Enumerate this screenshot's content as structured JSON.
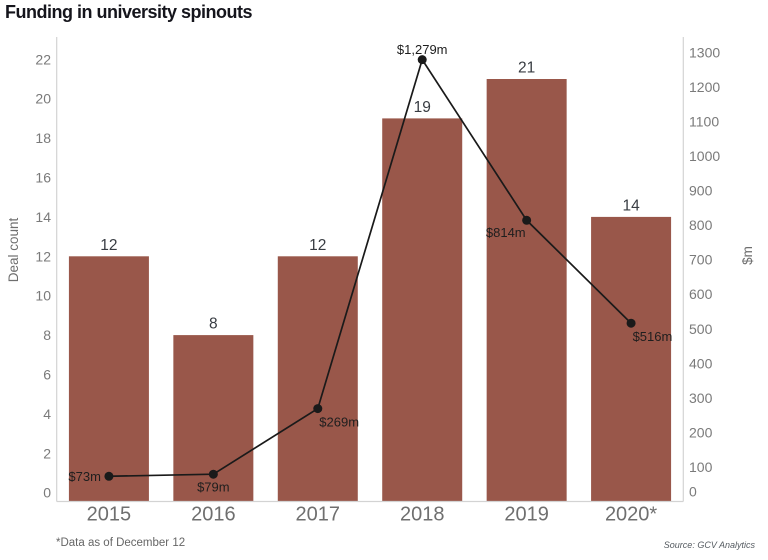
{
  "title": "Funding in university spinouts",
  "footnote": "*Data as of December 12",
  "source": "Source: GCV Analytics",
  "colors": {
    "bar": "#99574a",
    "line": "#1a1a1a",
    "axis_line": "#d3d3d3",
    "axis_text": "#7a7a7a",
    "year_text": "#6f6f6f",
    "bar_label": "#383c42",
    "line_label": "#1e1e1e",
    "axis_title": "#6e6e6e"
  },
  "chart_data": {
    "type": "bar",
    "categories": [
      "2015",
      "2016",
      "2017",
      "2018",
      "2019",
      "2020*"
    ],
    "series": [
      {
        "name": "Deal count",
        "type": "bar",
        "axis": "left",
        "values": [
          12,
          8,
          12,
          19,
          21,
          14
        ],
        "labels": [
          "12",
          "8",
          "12",
          "19",
          "21",
          "14"
        ]
      },
      {
        "name": "Funding",
        "type": "line",
        "axis": "right",
        "values": [
          73,
          79,
          269,
          1279,
          814,
          516
        ],
        "labels": [
          "$73m",
          "$79m",
          "$269m",
          "$1,279m",
          "$814m",
          "$516m"
        ],
        "label_placements": [
          "left",
          "below",
          "below-right",
          "above",
          "below-left",
          "below-right"
        ]
      }
    ],
    "left_axis": {
      "title": "Deal count",
      "min": 0,
      "max": 22,
      "step": 2
    },
    "right_axis": {
      "title": "$m",
      "min": 0,
      "max": 1300,
      "step": 100
    },
    "grid": false,
    "legend": false
  }
}
